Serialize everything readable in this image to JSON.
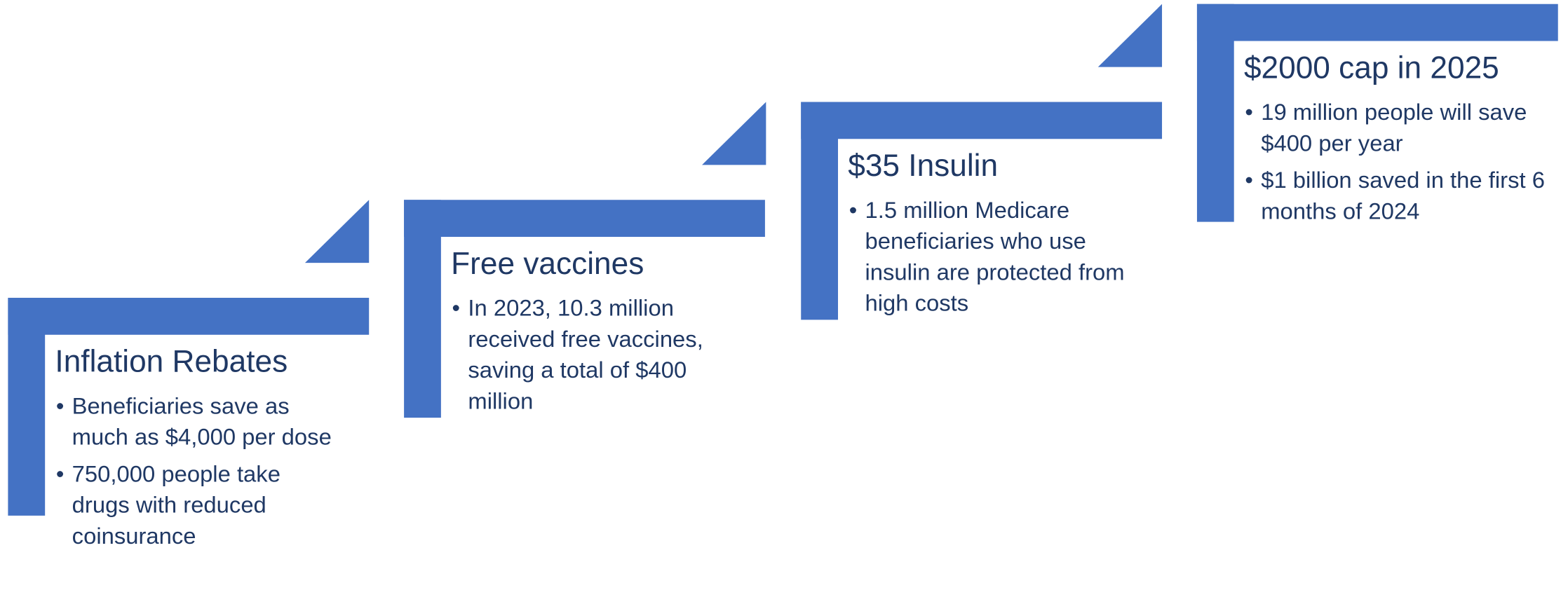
{
  "steps": [
    {
      "title": "Inflation Rebates",
      "bullets": [
        "Beneficiaries save as much as $4,000 per dose",
        "750,000 people take drugs with reduced coinsurance"
      ]
    },
    {
      "title": "Free vaccines",
      "bullets": [
        "In 2023, 10.3 million received free vaccines, saving a total of $400 million"
      ]
    },
    {
      "title": "$35 Insulin",
      "bullets": [
        "1.5 million Medicare beneficiaries who use insulin are protected from high costs"
      ]
    },
    {
      "title": "$2000 cap in 2025",
      "bullets": [
        "19 million people will save $400 per year",
        "$1 billion saved in the first 6 months of 2024"
      ]
    }
  ]
}
